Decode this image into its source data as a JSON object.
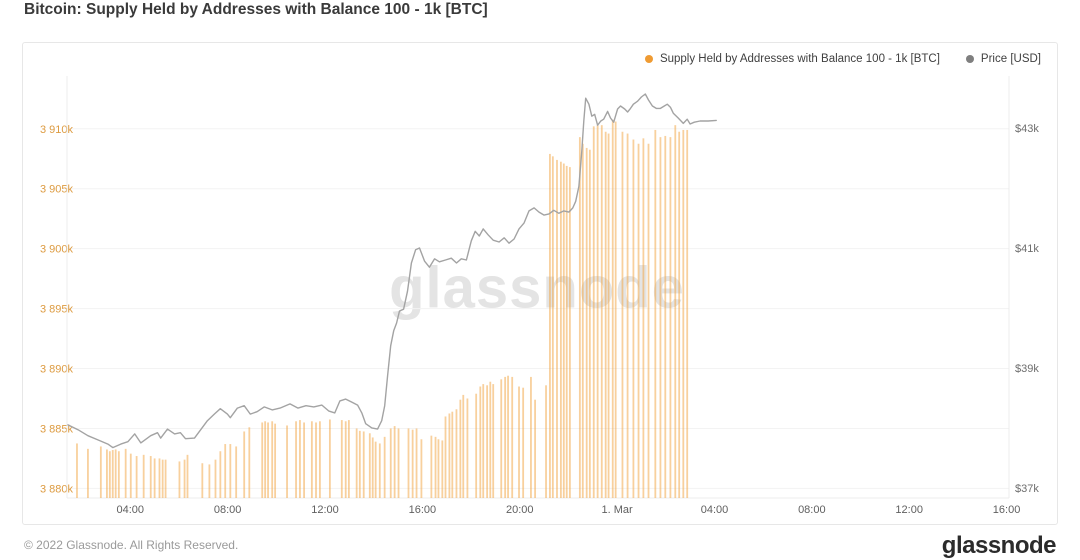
{
  "page": {
    "title": "Bitcoin: Supply Held by Addresses with Balance 100 - 1k [BTC]",
    "watermark": "glassnode",
    "footer_copyright": "© 2022 Glassnode. All Rights Reserved.",
    "brand_logo": "glassnode"
  },
  "legend": [
    {
      "label": "Supply Held by Addresses with Balance 100 - 1k [BTC]",
      "color": "#ef9b33"
    },
    {
      "label": "Price [USD]",
      "color": "#7f7f7f"
    }
  ],
  "style": {
    "bar_color": "#f2a23c",
    "bar_opacity": 0.5,
    "line_color": "#a3a3a3",
    "grid_color": "#f3f3f3",
    "plot_border_color": "#ececec",
    "axis_label_orange": "#dd9b41",
    "axis_label_gray": "#6e6e6e",
    "x_label_color": "#5f5f5f"
  },
  "chart_data": {
    "type": "bar+line",
    "title": "Bitcoin: Supply Held by Addresses with Balance 100 - 1k [BTC]",
    "grid": "horizontal-only",
    "legend_position": "top-right",
    "x_axis": {
      "unit": "hours since Feb 28 00:00",
      "domain": [
        1.4,
        40.1
      ],
      "ticks": [
        {
          "t": 4,
          "label": "04:00"
        },
        {
          "t": 8,
          "label": "08:00"
        },
        {
          "t": 12,
          "label": "12:00"
        },
        {
          "t": 16,
          "label": "16:00"
        },
        {
          "t": 20,
          "label": "20:00"
        },
        {
          "t": 24,
          "label": "1. Mar"
        },
        {
          "t": 28,
          "label": "04:00"
        },
        {
          "t": 32,
          "label": "08:00"
        },
        {
          "t": 36,
          "label": "12:00"
        },
        {
          "t": 40,
          "label": "16:00"
        }
      ]
    },
    "y_left": {
      "label": "Supply Held by Addresses with Balance 100 - 1k [BTC]",
      "unit": "kBTC",
      "domain": [
        3879.2,
        3914.4
      ],
      "ticks": [
        {
          "v": 3880,
          "label": "3 880k"
        },
        {
          "v": 3885,
          "label": "3 885k"
        },
        {
          "v": 3890,
          "label": "3 890k"
        },
        {
          "v": 3895,
          "label": "3 895k"
        },
        {
          "v": 3900,
          "label": "3 900k"
        },
        {
          "v": 3905,
          "label": "3 905k"
        },
        {
          "v": 3910,
          "label": "3 910k"
        }
      ]
    },
    "y_right": {
      "label": "Price [USD]",
      "unit": "kUSD",
      "domain": [
        36.83,
        43.87
      ],
      "ticks": [
        {
          "v": 37,
          "label": "$37k"
        },
        {
          "v": 39,
          "label": "$39k"
        },
        {
          "v": 41,
          "label": "$41k"
        },
        {
          "v": 43,
          "label": "$43k"
        }
      ]
    },
    "series": [
      {
        "name": "Supply Held by Addresses with Balance 100 - 1k [BTC]",
        "type": "bar",
        "axis": "left",
        "points": [
          [
            1.81,
            3883.75
          ],
          [
            2.26,
            3883.3
          ],
          [
            2.79,
            3883.5
          ],
          [
            3.04,
            3883.25
          ],
          [
            3.16,
            3883.1
          ],
          [
            3.28,
            3883.2
          ],
          [
            3.4,
            3883.25
          ],
          [
            3.53,
            3883.1
          ],
          [
            3.81,
            3883.3
          ],
          [
            4.02,
            3882.9
          ],
          [
            4.26,
            3882.7
          ],
          [
            4.55,
            3882.8
          ],
          [
            4.84,
            3882.7
          ],
          [
            5.0,
            3882.5
          ],
          [
            5.2,
            3882.5
          ],
          [
            5.33,
            3882.4
          ],
          [
            5.45,
            3882.4
          ],
          [
            6.02,
            3882.25
          ],
          [
            6.23,
            3882.4
          ],
          [
            6.35,
            3882.8
          ],
          [
            6.96,
            3882.1
          ],
          [
            7.25,
            3882.0
          ],
          [
            7.5,
            3882.4
          ],
          [
            7.7,
            3883.1
          ],
          [
            7.9,
            3883.7
          ],
          [
            8.11,
            3883.7
          ],
          [
            8.35,
            3883.5
          ],
          [
            8.68,
            3884.75
          ],
          [
            8.89,
            3885.1
          ],
          [
            9.42,
            3885.5
          ],
          [
            9.54,
            3885.6
          ],
          [
            9.66,
            3885.5
          ],
          [
            9.83,
            3885.6
          ],
          [
            9.95,
            3885.4
          ],
          [
            10.44,
            3885.25
          ],
          [
            10.81,
            3885.6
          ],
          [
            10.97,
            3885.7
          ],
          [
            11.14,
            3885.5
          ],
          [
            11.46,
            3885.6
          ],
          [
            11.63,
            3885.5
          ],
          [
            11.79,
            3885.6
          ],
          [
            12.2,
            3885.75
          ],
          [
            12.69,
            3885.7
          ],
          [
            12.85,
            3885.6
          ],
          [
            12.98,
            3885.7
          ],
          [
            13.3,
            3885.0
          ],
          [
            13.43,
            3884.8
          ],
          [
            13.59,
            3884.75
          ],
          [
            13.84,
            3884.6
          ],
          [
            13.96,
            3884.25
          ],
          [
            14.08,
            3883.9
          ],
          [
            14.25,
            3883.75
          ],
          [
            14.45,
            3884.3
          ],
          [
            14.7,
            3885.0
          ],
          [
            14.86,
            3885.2
          ],
          [
            15.02,
            3885.0
          ],
          [
            15.43,
            3885.0
          ],
          [
            15.6,
            3884.9
          ],
          [
            15.76,
            3885.0
          ],
          [
            15.96,
            3884.1
          ],
          [
            16.37,
            3884.4
          ],
          [
            16.54,
            3884.3
          ],
          [
            16.66,
            3884.1
          ],
          [
            16.82,
            3884.0
          ],
          [
            16.95,
            3886.0
          ],
          [
            17.11,
            3886.25
          ],
          [
            17.23,
            3886.4
          ],
          [
            17.4,
            3886.6
          ],
          [
            17.56,
            3887.4
          ],
          [
            17.68,
            3887.8
          ],
          [
            17.85,
            3887.5
          ],
          [
            18.21,
            3887.9
          ],
          [
            18.38,
            3888.5
          ],
          [
            18.5,
            3888.7
          ],
          [
            18.66,
            3888.6
          ],
          [
            18.79,
            3888.9
          ],
          [
            18.91,
            3888.7
          ],
          [
            19.24,
            3889.1
          ],
          [
            19.4,
            3889.3
          ],
          [
            19.52,
            3889.4
          ],
          [
            19.69,
            3889.3
          ],
          [
            19.97,
            3888.5
          ],
          [
            20.14,
            3888.4
          ],
          [
            20.46,
            3889.3
          ],
          [
            20.63,
            3887.4
          ],
          [
            21.08,
            3888.6
          ],
          [
            21.24,
            3907.9
          ],
          [
            21.36,
            3907.7
          ],
          [
            21.53,
            3907.4
          ],
          [
            21.69,
            3907.25
          ],
          [
            21.81,
            3907.1
          ],
          [
            21.93,
            3906.9
          ],
          [
            22.06,
            3906.8
          ],
          [
            22.47,
            3909.3
          ],
          [
            22.59,
            3908.75
          ],
          [
            22.75,
            3908.4
          ],
          [
            22.88,
            3908.25
          ],
          [
            23.04,
            3910.2
          ],
          [
            23.2,
            3910.3
          ],
          [
            23.37,
            3910.3
          ],
          [
            23.53,
            3909.75
          ],
          [
            23.65,
            3909.6
          ],
          [
            23.82,
            3910.75
          ],
          [
            23.94,
            3910.6
          ],
          [
            24.22,
            3909.75
          ],
          [
            24.43,
            3909.6
          ],
          [
            24.67,
            3909.1
          ],
          [
            24.88,
            3908.75
          ],
          [
            25.08,
            3909.2
          ],
          [
            25.29,
            3908.75
          ],
          [
            25.57,
            3909.9
          ],
          [
            25.78,
            3909.3
          ],
          [
            25.98,
            3909.4
          ],
          [
            26.19,
            3909.3
          ],
          [
            26.39,
            3910.3
          ],
          [
            26.55,
            3909.75
          ],
          [
            26.72,
            3909.9
          ],
          [
            26.88,
            3909.9
          ]
        ]
      },
      {
        "name": "Price [USD]",
        "type": "line",
        "axis": "right",
        "points": [
          [
            1.44,
            38.05
          ],
          [
            1.85,
            37.97
          ],
          [
            2.26,
            37.87
          ],
          [
            2.67,
            37.8
          ],
          [
            3.08,
            37.73
          ],
          [
            3.28,
            37.67
          ],
          [
            3.61,
            37.73
          ],
          [
            3.9,
            37.77
          ],
          [
            4.18,
            37.9
          ],
          [
            4.43,
            37.75
          ],
          [
            4.84,
            37.87
          ],
          [
            5.12,
            37.92
          ],
          [
            5.25,
            37.83
          ],
          [
            5.53,
            37.98
          ],
          [
            5.82,
            37.9
          ],
          [
            6.06,
            37.92
          ],
          [
            6.27,
            37.82
          ],
          [
            6.64,
            37.83
          ],
          [
            7.17,
            38.12
          ],
          [
            7.45,
            38.23
          ],
          [
            7.7,
            38.32
          ],
          [
            7.99,
            38.23
          ],
          [
            8.11,
            38.17
          ],
          [
            8.4,
            38.33
          ],
          [
            8.68,
            38.37
          ],
          [
            8.93,
            38.23
          ],
          [
            9.21,
            38.27
          ],
          [
            9.5,
            38.35
          ],
          [
            9.83,
            38.3
          ],
          [
            10.15,
            38.33
          ],
          [
            10.56,
            38.4
          ],
          [
            10.89,
            38.33
          ],
          [
            11.22,
            38.37
          ],
          [
            11.54,
            38.35
          ],
          [
            11.87,
            38.38
          ],
          [
            12.16,
            38.28
          ],
          [
            12.4,
            38.25
          ],
          [
            12.61,
            38.45
          ],
          [
            12.85,
            38.48
          ],
          [
            13.1,
            38.43
          ],
          [
            13.34,
            38.38
          ],
          [
            13.51,
            38.25
          ],
          [
            13.67,
            38.07
          ],
          [
            13.92,
            38.0
          ],
          [
            14.16,
            37.98
          ],
          [
            14.33,
            38.12
          ],
          [
            14.45,
            38.37
          ],
          [
            14.57,
            38.87
          ],
          [
            14.7,
            39.37
          ],
          [
            14.82,
            39.62
          ],
          [
            14.94,
            39.75
          ],
          [
            15.06,
            39.95
          ],
          [
            15.23,
            39.98
          ],
          [
            15.39,
            40.28
          ],
          [
            15.55,
            40.75
          ],
          [
            15.72,
            40.97
          ],
          [
            15.88,
            41.0
          ],
          [
            16.09,
            40.78
          ],
          [
            16.29,
            40.68
          ],
          [
            16.5,
            40.82
          ],
          [
            16.7,
            40.77
          ],
          [
            16.95,
            40.8
          ],
          [
            17.19,
            40.83
          ],
          [
            17.4,
            40.75
          ],
          [
            17.6,
            40.82
          ],
          [
            17.81,
            40.8
          ],
          [
            18.01,
            41.12
          ],
          [
            18.17,
            41.28
          ],
          [
            18.34,
            41.2
          ],
          [
            18.5,
            41.32
          ],
          [
            18.7,
            41.22
          ],
          [
            18.91,
            41.13
          ],
          [
            19.15,
            41.1
          ],
          [
            19.36,
            41.17
          ],
          [
            19.56,
            41.08
          ],
          [
            19.77,
            41.15
          ],
          [
            19.97,
            41.32
          ],
          [
            20.18,
            41.42
          ],
          [
            20.38,
            41.62
          ],
          [
            20.59,
            41.67
          ],
          [
            20.79,
            41.6
          ],
          [
            21.0,
            41.55
          ],
          [
            21.2,
            41.57
          ],
          [
            21.4,
            41.63
          ],
          [
            21.61,
            41.58
          ],
          [
            21.81,
            41.62
          ],
          [
            22.02,
            41.6
          ],
          [
            22.18,
            41.67
          ],
          [
            22.3,
            41.78
          ],
          [
            22.43,
            42.03
          ],
          [
            22.55,
            42.62
          ],
          [
            22.63,
            43.12
          ],
          [
            22.71,
            43.5
          ],
          [
            22.84,
            43.4
          ],
          [
            22.96,
            43.2
          ],
          [
            23.08,
            43.23
          ],
          [
            23.2,
            43.05
          ],
          [
            23.33,
            43.12
          ],
          [
            23.45,
            43.15
          ],
          [
            23.61,
            43.28
          ],
          [
            23.73,
            43.17
          ],
          [
            23.86,
            43.1
          ],
          [
            24.02,
            43.32
          ],
          [
            24.14,
            43.37
          ],
          [
            24.31,
            43.32
          ],
          [
            24.43,
            43.27
          ],
          [
            24.55,
            43.33
          ],
          [
            24.67,
            43.4
          ],
          [
            24.84,
            43.45
          ],
          [
            25.0,
            43.52
          ],
          [
            25.16,
            43.57
          ],
          [
            25.29,
            43.47
          ],
          [
            25.45,
            43.37
          ],
          [
            25.61,
            43.33
          ],
          [
            25.78,
            43.33
          ],
          [
            25.94,
            43.37
          ],
          [
            26.06,
            43.4
          ],
          [
            26.19,
            43.35
          ],
          [
            26.31,
            43.25
          ],
          [
            26.51,
            43.17
          ],
          [
            26.72,
            43.08
          ],
          [
            26.88,
            43.15
          ],
          [
            27.0,
            43.07
          ],
          [
            27.17,
            43.1
          ],
          [
            27.41,
            43.12
          ],
          [
            27.74,
            43.12
          ],
          [
            28.07,
            43.13
          ]
        ]
      }
    ]
  }
}
